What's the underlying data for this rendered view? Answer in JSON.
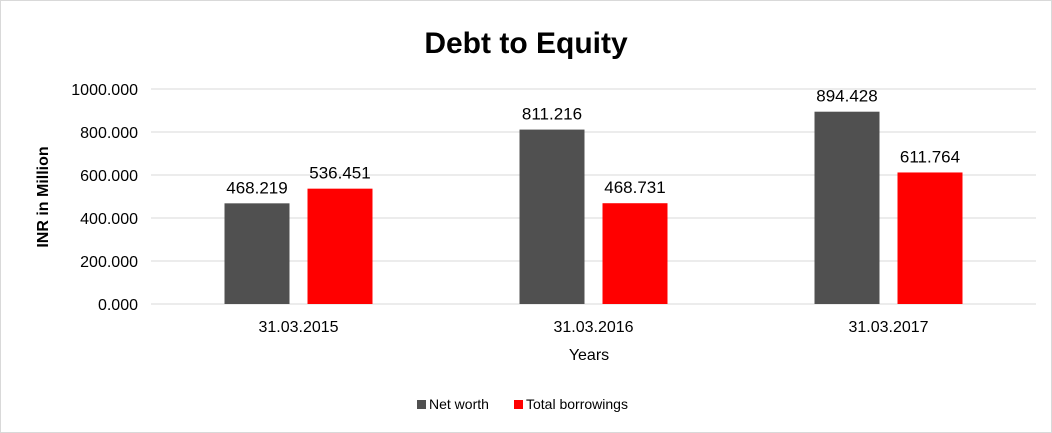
{
  "chart_data": {
    "type": "bar",
    "title": "Debt to Equity",
    "xlabel": "Years",
    "ylabel": "INR in Million",
    "categories": [
      "31.03.2015",
      "31.03.2016",
      "31.03.2017"
    ],
    "series": [
      {
        "name": "Net worth",
        "color": "#505050",
        "values": [
          468.219,
          811.216,
          894.428
        ]
      },
      {
        "name": "Total borrowings",
        "color": "#ff0000",
        "values": [
          536.451,
          468.731,
          611.764
        ]
      }
    ],
    "ylim": [
      0,
      1000
    ],
    "ytick_values": [
      0,
      200,
      400,
      600,
      800,
      1000
    ],
    "ytick_labels": [
      "0.000",
      "200.000",
      "400.000",
      "600.000",
      "800.000",
      "1000.000"
    ],
    "data_labels": [
      [
        "468.219",
        "811.216",
        "894.428"
      ],
      [
        "536.451",
        "468.731",
        "611.764"
      ]
    ],
    "grid": true,
    "legend": "bottom-center"
  }
}
